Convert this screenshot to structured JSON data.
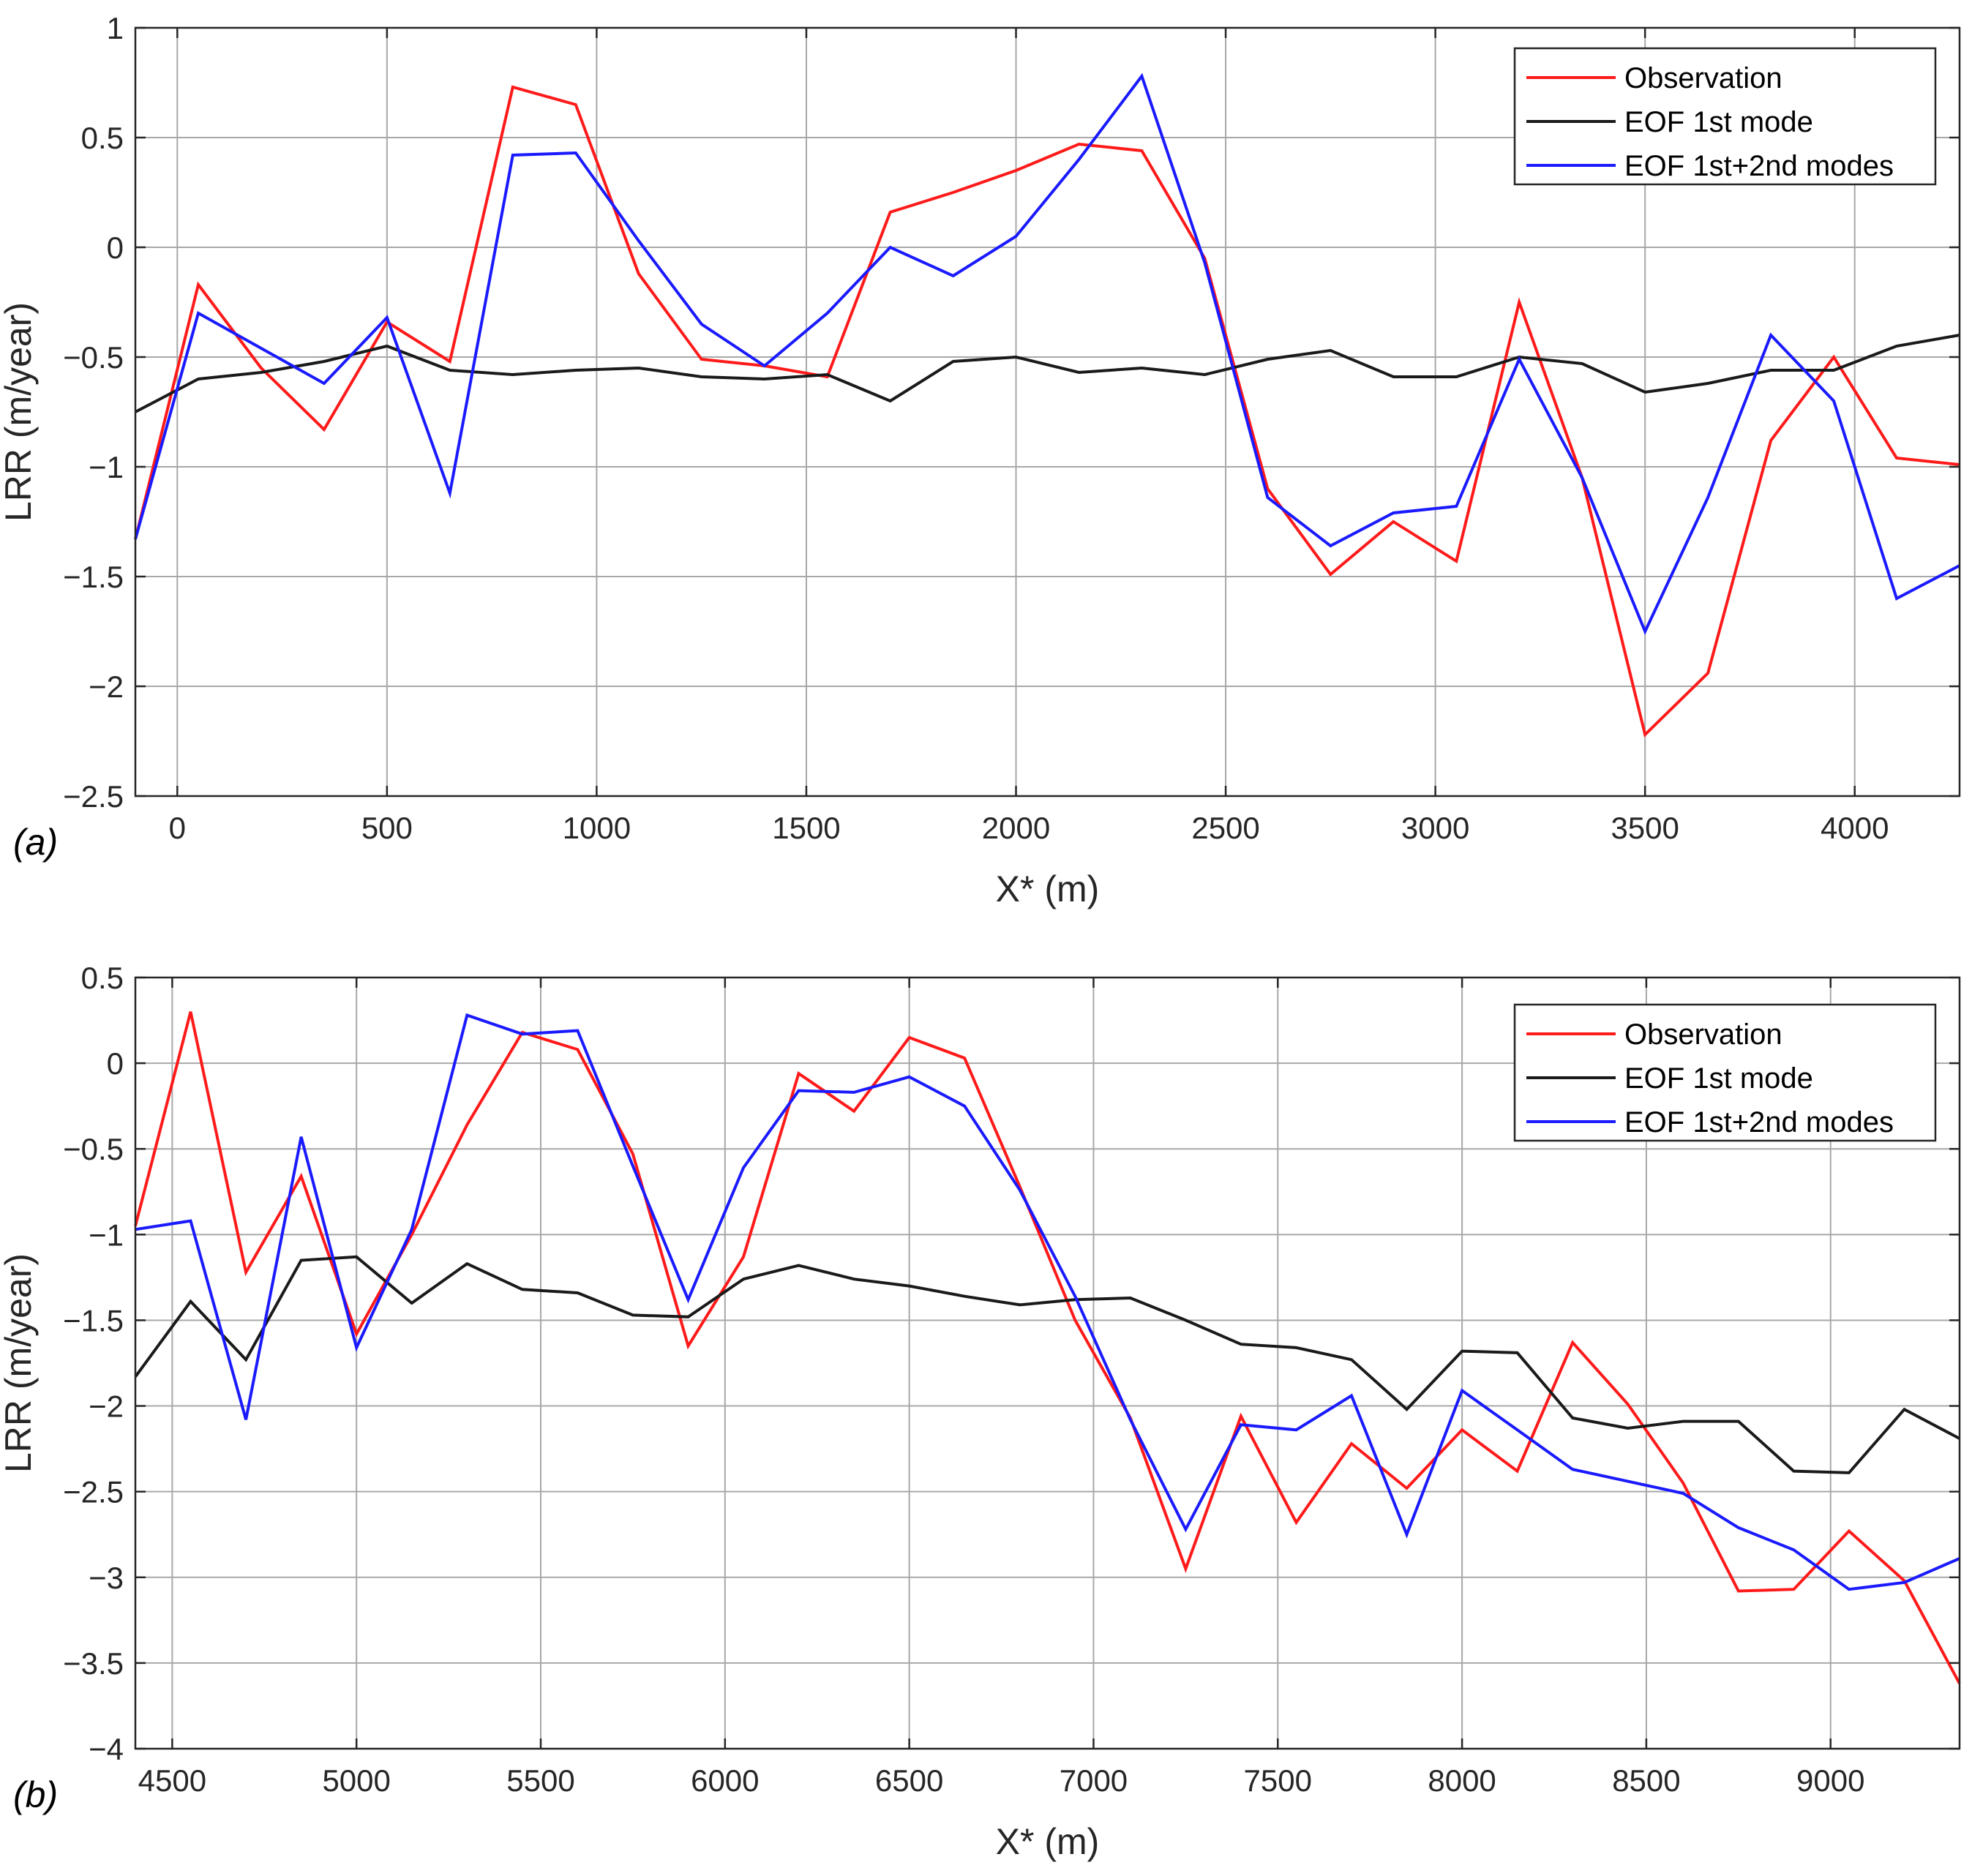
{
  "colors": {
    "observation": "#ff1a1a",
    "eof1": "#1a1a1a",
    "eof12": "#1a1aff",
    "grid": "#a8a8a8",
    "axis": "#262626"
  },
  "chart_data": [
    {
      "type": "line",
      "panel_label": "(a)",
      "xlabel": "X* (m)",
      "ylabel": "LRR (m/year)",
      "xlim": [
        -100,
        4250
      ],
      "ylim": [
        -2.5,
        1
      ],
      "xticks": [
        0,
        500,
        1000,
        1500,
        2000,
        2500,
        3000,
        3500,
        4000
      ],
      "xtick_labels": [
        "0",
        "500",
        "1000",
        "1500",
        "2000",
        "2500",
        "3000",
        "3500",
        "4000"
      ],
      "yticks": [
        -2.5,
        -2,
        -1.5,
        -1,
        -0.5,
        0,
        0.5,
        1
      ],
      "ytick_labels": [
        "−2.5",
        "−2",
        "−1.5",
        "−1",
        "−0.5",
        "0",
        "0.5",
        "1"
      ],
      "grid": true,
      "legend_position": "top-right",
      "series": [
        {
          "name": "Observation",
          "color": "#ff1a1a",
          "x": [
            -100,
            50,
            200,
            350,
            500,
            650,
            800,
            950,
            1100,
            1250,
            1400,
            1550,
            1700,
            1850,
            2000,
            2150,
            2300,
            2450,
            2600,
            2750,
            2900,
            3050,
            3200,
            3350,
            3500,
            3650,
            3800,
            3950,
            4100,
            4250
          ],
          "y": [
            -1.33,
            -0.17,
            -0.55,
            -0.83,
            -0.34,
            -0.52,
            0.73,
            0.65,
            -0.12,
            -0.51,
            -0.54,
            -0.59,
            0.16,
            0.25,
            0.35,
            0.47,
            0.44,
            -0.05,
            -1.1,
            -1.49,
            -1.25,
            -1.43,
            -0.25,
            -1.05,
            -2.22,
            -1.94,
            -0.88,
            -0.5,
            -0.96,
            -0.99
          ]
        },
        {
          "name": "EOF 1st mode",
          "color": "#1a1a1a",
          "x": [
            -100,
            50,
            200,
            350,
            500,
            650,
            800,
            950,
            1100,
            1250,
            1400,
            1550,
            1700,
            1850,
            2000,
            2150,
            2300,
            2450,
            2600,
            2750,
            2900,
            3050,
            3200,
            3350,
            3500,
            3650,
            3800,
            3950,
            4100,
            4250
          ],
          "y": [
            -0.75,
            -0.6,
            -0.57,
            -0.52,
            -0.45,
            -0.56,
            -0.58,
            -0.56,
            -0.55,
            -0.59,
            -0.6,
            -0.58,
            -0.7,
            -0.52,
            -0.5,
            -0.57,
            -0.55,
            -0.58,
            -0.51,
            -0.47,
            -0.59,
            -0.59,
            -0.5,
            -0.53,
            -0.66,
            -0.62,
            -0.56,
            -0.56,
            -0.45,
            -0.4
          ]
        },
        {
          "name": "EOF 1st+2nd modes",
          "color": "#1a1aff",
          "x": [
            -100,
            50,
            200,
            350,
            500,
            650,
            800,
            950,
            1100,
            1250,
            1400,
            1550,
            1700,
            1850,
            2000,
            2150,
            2300,
            2450,
            2600,
            2750,
            2900,
            3050,
            3200,
            3350,
            3500,
            3650,
            3800,
            3950,
            4100,
            4250
          ],
          "y": [
            -1.33,
            -0.3,
            -0.46,
            -0.62,
            -0.32,
            -1.12,
            0.42,
            0.43,
            0.03,
            -0.35,
            -0.54,
            -0.3,
            0.0,
            -0.13,
            0.05,
            0.4,
            0.78,
            -0.07,
            -1.14,
            -1.36,
            -1.21,
            -1.18,
            -0.51,
            -1.05,
            -1.75,
            -1.14,
            -0.4,
            -0.7,
            -1.6,
            -1.45
          ]
        }
      ]
    },
    {
      "type": "line",
      "panel_label": "(b)",
      "xlabel": "X* (m)",
      "ylabel": "LRR (m/year)",
      "xlim": [
        4400,
        9350
      ],
      "ylim": [
        -4,
        0.5
      ],
      "xticks": [
        4500,
        5000,
        5500,
        6000,
        6500,
        7000,
        7500,
        8000,
        8500,
        9000
      ],
      "xtick_labels": [
        "4500",
        "5000",
        "5500",
        "6000",
        "6500",
        "7000",
        "7500",
        "8000",
        "8500",
        "9000"
      ],
      "yticks": [
        -4,
        -3.5,
        -3,
        -2.5,
        -2,
        -1.5,
        -1,
        -0.5,
        0,
        0.5
      ],
      "ytick_labels": [
        "−4",
        "−3.5",
        "−3",
        "−2.5",
        "−2",
        "−1.5",
        "−1",
        "−0.5",
        "0",
        "0.5"
      ],
      "grid": true,
      "legend_position": "top-right",
      "series": [
        {
          "name": "Observation",
          "color": "#ff1a1a",
          "x": [
            4400,
            4550,
            4700,
            4850,
            5000,
            5150,
            5300,
            5450,
            5600,
            5750,
            5900,
            6050,
            6200,
            6350,
            6500,
            6650,
            6800,
            6950,
            7100,
            7250,
            7400,
            7550,
            7700,
            7850,
            8000,
            8150,
            8300,
            8450,
            8600,
            8750,
            8900,
            9050,
            9200,
            9350
          ],
          "y": [
            -0.95,
            0.3,
            -1.22,
            -0.66,
            -1.58,
            -1.0,
            -0.36,
            0.18,
            0.08,
            -0.53,
            -1.65,
            -1.13,
            -0.06,
            -0.28,
            0.15,
            0.03,
            -0.72,
            -1.5,
            -2.07,
            -2.95,
            -2.06,
            -2.68,
            -2.22,
            -2.48,
            -2.14,
            -2.38,
            -1.63,
            -1.99,
            -2.45,
            -3.08,
            -3.07,
            -2.73,
            -3.02,
            -3.62
          ]
        },
        {
          "name": "EOF 1st mode",
          "color": "#1a1a1a",
          "x": [
            4400,
            4550,
            4700,
            4850,
            5000,
            5150,
            5300,
            5450,
            5600,
            5750,
            5900,
            6050,
            6200,
            6350,
            6500,
            6650,
            6800,
            6950,
            7100,
            7250,
            7400,
            7550,
            7700,
            7850,
            8000,
            8150,
            8300,
            8450,
            8600,
            8750,
            8900,
            9050,
            9200,
            9350
          ],
          "y": [
            -1.83,
            -1.39,
            -1.73,
            -1.15,
            -1.13,
            -1.4,
            -1.17,
            -1.32,
            -1.34,
            -1.47,
            -1.48,
            -1.26,
            -1.18,
            -1.26,
            -1.3,
            -1.36,
            -1.41,
            -1.38,
            -1.37,
            -1.5,
            -1.64,
            -1.66,
            -1.73,
            -2.02,
            -1.68,
            -1.69,
            -2.07,
            -2.13,
            -2.09,
            -2.09,
            -2.38,
            -2.39,
            -2.02,
            -2.19
          ]
        },
        {
          "name": "EOF 1st+2nd modes",
          "color": "#1a1aff",
          "x": [
            4400,
            4550,
            4700,
            4850,
            5000,
            5150,
            5300,
            5450,
            5600,
            5750,
            5900,
            6050,
            6200,
            6350,
            6500,
            6650,
            6800,
            6950,
            7100,
            7250,
            7400,
            7550,
            7700,
            7850,
            8000,
            8150,
            8300,
            8450,
            8600,
            8750,
            8900,
            9050,
            9200,
            9350
          ],
          "y": [
            -0.97,
            -0.92,
            -2.08,
            -0.43,
            -1.66,
            -0.97,
            0.28,
            0.17,
            0.19,
            -0.6,
            -1.38,
            -0.61,
            -0.16,
            -0.17,
            -0.08,
            -0.25,
            -0.74,
            -1.36,
            -2.08,
            -2.72,
            -2.11,
            -2.14,
            -1.94,
            -2.75,
            -1.91,
            -2.14,
            -2.37,
            -2.44,
            -2.51,
            -2.71,
            -2.84,
            -3.07,
            -3.03,
            -2.89
          ]
        }
      ]
    }
  ]
}
